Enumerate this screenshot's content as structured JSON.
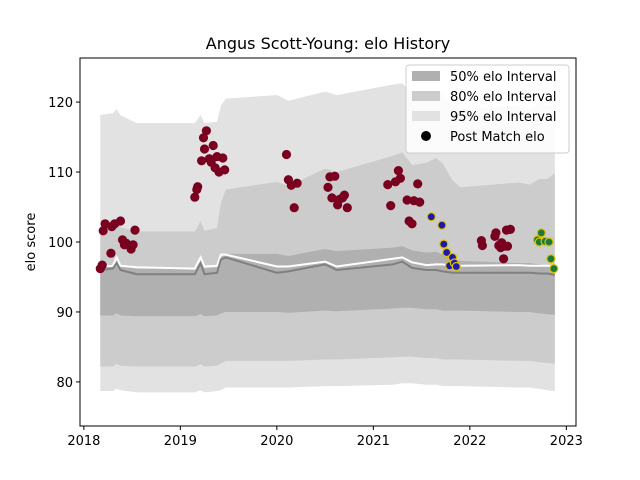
{
  "chart_data": {
    "type": "scatter",
    "title": "Angus Scott-Young: elo History",
    "xlabel": "",
    "ylabel": "elo score",
    "xlim": [
      2017.96,
      2023.1
    ],
    "ylim": [
      73.7,
      126.3
    ],
    "x_ticks": [
      2018,
      2019,
      2020,
      2021,
      2022,
      2023
    ],
    "x_tick_labels": [
      "2018",
      "2019",
      "2020",
      "2021",
      "2022",
      "2023"
    ],
    "y_ticks": [
      80,
      90,
      100,
      110,
      120
    ],
    "y_tick_labels": [
      "80",
      "90",
      "100",
      "110",
      "120"
    ],
    "legend_position": "top-right",
    "legend": [
      {
        "label": "50% elo Interval",
        "kind": "band",
        "color": "#b0b0b0"
      },
      {
        "label": "80% elo Interval",
        "kind": "band",
        "color": "#cccccc"
      },
      {
        "label": "95% elo Interval",
        "kind": "band",
        "color": "#e2e2e2"
      },
      {
        "label": "Post Match elo",
        "kind": "marker",
        "color": "#000000"
      }
    ],
    "series": [
      {
        "name": "95% elo Interval",
        "type": "band",
        "color": "#e2e2e2",
        "x": [
          2018.17,
          2018.3,
          2018.34,
          2018.38,
          2018.55,
          2019.15,
          2019.21,
          2019.25,
          2019.38,
          2019.42,
          2019.47,
          2020.0,
          2020.12,
          2020.5,
          2020.62,
          2021.2,
          2021.3,
          2021.4,
          2021.55,
          2021.65,
          2021.72,
          2021.82,
          2021.9,
          2022.5,
          2022.62,
          2022.72,
          2022.8,
          2022.88
        ],
        "upper": [
          118.2,
          118.4,
          119,
          118.1,
          117,
          117,
          118.2,
          117,
          117.2,
          119.5,
          120.5,
          121,
          120.2,
          121.5,
          121,
          122.5,
          122.7,
          121.2,
          121,
          121.5,
          121,
          119.4,
          119,
          119.5,
          119,
          119.8,
          119.5,
          119.8
        ],
        "lower": [
          78.7,
          78.7,
          79,
          78.8,
          78.5,
          78.5,
          78.8,
          78.5,
          78.7,
          78.8,
          79.2,
          79.2,
          79.2,
          79.4,
          79.4,
          79.6,
          79.8,
          79.8,
          79.6,
          79.6,
          79.4,
          79.4,
          79.4,
          79.2,
          79.2,
          79,
          78.8,
          78.7
        ]
      },
      {
        "name": "80% elo Interval",
        "type": "band",
        "color": "#cccccc",
        "x": [
          2018.17,
          2018.3,
          2018.34,
          2018.38,
          2018.55,
          2019.15,
          2019.21,
          2019.25,
          2019.38,
          2019.42,
          2019.47,
          2020.0,
          2020.12,
          2020.5,
          2020.62,
          2021.2,
          2021.3,
          2021.4,
          2021.55,
          2021.65,
          2021.72,
          2021.82,
          2021.9,
          2022.5,
          2022.62,
          2022.72,
          2022.8,
          2022.88
        ],
        "upper": [
          102.2,
          102.5,
          103.3,
          102.1,
          101.5,
          101.5,
          103,
          101.6,
          102,
          105.5,
          107.5,
          108.6,
          108,
          110.5,
          110,
          112.3,
          112.8,
          111,
          111.3,
          112,
          111.2,
          108.8,
          107.8,
          108.5,
          108.2,
          109,
          109,
          109.8
        ],
        "lower": [
          82.2,
          82.2,
          82.6,
          82.3,
          82.2,
          82.2,
          82.5,
          82.2,
          82.3,
          82.6,
          83,
          83,
          83,
          83.2,
          83.2,
          83.5,
          83.6,
          83.6,
          83.4,
          83.4,
          83.2,
          83.2,
          83.2,
          83,
          83,
          82.8,
          82.7,
          82.6
        ]
      },
      {
        "name": "50% elo Interval",
        "type": "band",
        "color": "#b0b0b0",
        "x": [
          2018.17,
          2018.3,
          2018.34,
          2018.38,
          2018.55,
          2019.15,
          2019.21,
          2019.25,
          2019.38,
          2019.42,
          2019.47,
          2020.0,
          2020.12,
          2020.5,
          2020.62,
          2021.2,
          2021.3,
          2021.4,
          2021.55,
          2021.65,
          2021.72,
          2021.82,
          2021.9,
          2022.5,
          2022.62,
          2022.72,
          2022.8,
          2022.88
        ],
        "upper": [
          96.6,
          96.8,
          97.4,
          96.5,
          96.2,
          96.2,
          97.2,
          96.2,
          96.4,
          97.8,
          98.3,
          98.3,
          98,
          99,
          98.7,
          99.2,
          99.4,
          98.8,
          98.5,
          98.6,
          98.2,
          97.6,
          97.3,
          97,
          97,
          96.8,
          96.6,
          96.6
        ],
        "lower": [
          89.5,
          89.5,
          89.8,
          89.5,
          89.4,
          89.4,
          89.7,
          89.4,
          89.5,
          89.8,
          90,
          90,
          89.9,
          90.2,
          90.1,
          90.5,
          90.6,
          90.6,
          90.4,
          90.4,
          90.2,
          90.2,
          90.2,
          90,
          90,
          89.8,
          89.7,
          89.6
        ]
      },
      {
        "name": "",
        "type": "line",
        "color": "#ffffff",
        "x": [
          2018.17,
          2018.3,
          2018.34,
          2018.38,
          2018.55,
          2019.15,
          2019.21,
          2019.25,
          2019.38,
          2019.42,
          2019.47,
          2020.0,
          2020.12,
          2020.5,
          2020.62,
          2021.2,
          2021.3,
          2021.4,
          2021.55,
          2021.65,
          2021.72,
          2021.82,
          2021.9,
          2022.5,
          2022.62,
          2022.72,
          2022.8,
          2022.88
        ],
        "y": [
          96.5,
          96.6,
          97.8,
          96.6,
          96.4,
          96.2,
          97.8,
          96.5,
          96.6,
          98.2,
          98.2,
          96.5,
          96.5,
          97.2,
          96.5,
          97.6,
          97.8,
          97.1,
          96.7,
          96.8,
          96.8,
          96.6,
          96.6,
          96.7,
          96.6,
          96.6,
          96.6,
          96.5
        ]
      },
      {
        "name": "",
        "type": "line",
        "color": "#808080",
        "x": [
          2018.17,
          2018.3,
          2018.34,
          2018.38,
          2018.55,
          2019.15,
          2019.21,
          2019.25,
          2019.38,
          2019.42,
          2019.47,
          2020.0,
          2020.12,
          2020.5,
          2020.62,
          2021.2,
          2021.3,
          2021.4,
          2021.55,
          2021.65,
          2021.72,
          2021.82,
          2021.9,
          2022.5,
          2022.62,
          2022.72,
          2022.8,
          2022.88
        ],
        "y": [
          96,
          96.2,
          97,
          96.0,
          95.4,
          95.4,
          97,
          95.4,
          95.6,
          97.5,
          97.8,
          95.6,
          95.8,
          96.8,
          96,
          96.8,
          97.2,
          96.3,
          96.0,
          96.0,
          95.8,
          95.6,
          95.6,
          95.6,
          95.6,
          95.5,
          95.5,
          95.3
        ]
      },
      {
        "name": "Post Match elo",
        "type": "scatter",
        "color": "#7a0020",
        "edge": "#7a0020",
        "x": [
          2018.17,
          2018.19,
          2018.2,
          2018.22,
          2018.28,
          2018.29,
          2018.32,
          2018.38,
          2018.4,
          2018.42,
          2018.44,
          2018.49,
          2018.51,
          2018.53,
          2019.15,
          2019.17,
          2019.18,
          2019.22,
          2019.24,
          2019.25,
          2019.27,
          2019.3,
          2019.32,
          2019.34,
          2019.36,
          2019.38,
          2019.4,
          2019.44,
          2019.46,
          2020.1,
          2020.12,
          2020.15,
          2020.18,
          2020.21,
          2020.53,
          2020.55,
          2020.57,
          2020.6,
          2020.63,
          2020.65,
          2020.68,
          2020.7,
          2020.73,
          2021.15,
          2021.18,
          2021.23,
          2021.26,
          2021.28,
          2021.35,
          2021.37,
          2021.4,
          2021.42,
          2021.46,
          2021.48
        ],
        "y": [
          96.2,
          96.7,
          101.6,
          102.6,
          98.4,
          102.2,
          102.6,
          103,
          100.3,
          99.6,
          99.8,
          99.0,
          99.6,
          101.7,
          106.4,
          107.5,
          107.9,
          111.6,
          114.9,
          113.3,
          115.9,
          111.9,
          111.4,
          113.8,
          110.6,
          112.2,
          110,
          112,
          110.3,
          112.5,
          108.9,
          108.1,
          104.9,
          108.4,
          107.8,
          109.3,
          106.3,
          109.4,
          105.3,
          106.1,
          106.3,
          106.7,
          104.9,
          108.2,
          105.2,
          108.6,
          110.2,
          109.1,
          106,
          103,
          102.6,
          105.9,
          108.3,
          105.7
        ]
      },
      {
        "name": "Post Match elo",
        "type": "scatter",
        "color": "#1a1aa6",
        "edge": "#e0c000",
        "x": [
          2021.6,
          2021.71,
          2021.73,
          2021.76,
          2021.79,
          2021.82,
          2021.84,
          2021.86
        ],
        "y": [
          103.6,
          102.4,
          99.7,
          98.5,
          96.6,
          97.8,
          97,
          96.5
        ]
      },
      {
        "name": "Post Match elo",
        "type": "scatter",
        "color": "#7a0020",
        "edge": "#7a0020",
        "x": [
          2022.12,
          2022.13,
          2022.26,
          2022.27,
          2022.3,
          2022.32,
          2022.33,
          2022.35,
          2022.36,
          2022.38,
          2022.39,
          2022.42
        ],
        "y": [
          100.2,
          99.5,
          100.8,
          101.3,
          99.5,
          99.2,
          99.9,
          97.6,
          99.4,
          101.7,
          99.4,
          101.8
        ]
      },
      {
        "name": "Post Match elo",
        "type": "scatter",
        "color": "#1a7a3a",
        "edge": "#e0c000",
        "x": [
          2022.7,
          2022.72,
          2022.74,
          2022.78,
          2022.82,
          2022.84,
          2022.87
        ],
        "y": [
          100.3,
          100.0,
          101.3,
          100.1,
          100.0,
          97.6,
          96.2
        ]
      }
    ]
  }
}
